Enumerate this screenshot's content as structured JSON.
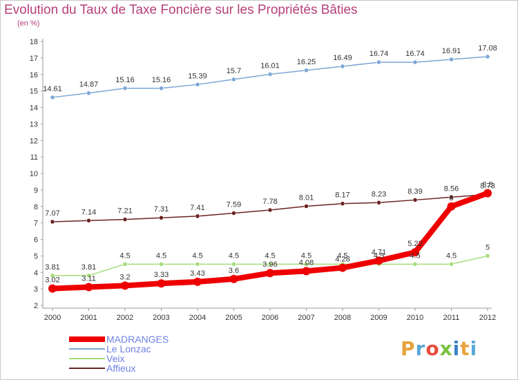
{
  "title": "Evolution du Taux de Taxe Foncière sur les Propriétés Bâties",
  "subtitle": "(en %)",
  "logo": {
    "text": "Proxiti",
    "colors": [
      "#e8a33d",
      "#5aa8d8",
      "#e74c3c",
      "#7ac143",
      "#3b82c4",
      "#e8a33d",
      "#5aa8d8"
    ]
  },
  "chart_data": {
    "type": "line",
    "title": "Evolution du Taux de Taxe Foncière sur les Propriétés Bâties",
    "ylabel": "(en %)",
    "x": [
      "2000",
      "2001",
      "2002",
      "2003",
      "2004",
      "2005",
      "2006",
      "2007",
      "2008",
      "2009",
      "2010",
      "2011",
      "2012"
    ],
    "ylim": [
      2,
      18
    ],
    "yticks": [
      "2",
      "3",
      "4",
      "5",
      "6",
      "7",
      "8",
      "9",
      "10",
      "11",
      "12",
      "13",
      "14",
      "15",
      "16",
      "17",
      "18"
    ],
    "grid": false,
    "legend": "bottom-left",
    "series": [
      {
        "name": "MADRANGES",
        "color": "#ee0000",
        "thick": true,
        "values": [
          3.02,
          3.11,
          3.2,
          3.33,
          3.43,
          3.6,
          3.96,
          4.08,
          4.28,
          4.71,
          5.22,
          8.0,
          8.8
        ],
        "labels": [
          "3.02",
          "3.11",
          "3.2",
          "3.33",
          "3.43",
          "3.6",
          "3.96",
          "4.08",
          "4.28",
          "4.71",
          "5.22",
          "8",
          "8.8"
        ]
      },
      {
        "name": "Le Lonzac",
        "color": "#7ba7d6",
        "thick": false,
        "values": [
          14.61,
          14.87,
          15.16,
          15.16,
          15.39,
          15.7,
          16.01,
          16.25,
          16.49,
          16.74,
          16.74,
          16.91,
          17.08
        ],
        "labels": [
          "14.61",
          "14.87",
          "15.16",
          "15.16",
          "15.39",
          "15.7",
          "16.01",
          "16.25",
          "16.49",
          "16.74",
          "16.74",
          "16.91",
          "17.08"
        ]
      },
      {
        "name": "Veix",
        "color": "#a4dc7a",
        "thick": false,
        "values": [
          3.81,
          3.81,
          4.5,
          4.5,
          4.5,
          4.5,
          4.5,
          4.5,
          4.5,
          4.5,
          4.5,
          4.5,
          5.0
        ],
        "labels": [
          "3.81",
          "3.81",
          "4.5",
          "4.5",
          "4.5",
          "4.5",
          "4.5",
          "4.5",
          "4.5",
          "4.5",
          "4.5",
          "4.5",
          "5"
        ]
      },
      {
        "name": "Affieux",
        "color": "#6b2222",
        "thick": false,
        "values": [
          7.07,
          7.14,
          7.21,
          7.31,
          7.41,
          7.59,
          7.78,
          8.01,
          8.17,
          8.23,
          8.39,
          8.56,
          8.73
        ],
        "labels": [
          "7.07",
          "7.14",
          "7.21",
          "7.31",
          "7.41",
          "7.59",
          "7.78",
          "8.01",
          "8.17",
          "8.23",
          "8.39",
          "8.56",
          "8.73"
        ]
      }
    ]
  }
}
